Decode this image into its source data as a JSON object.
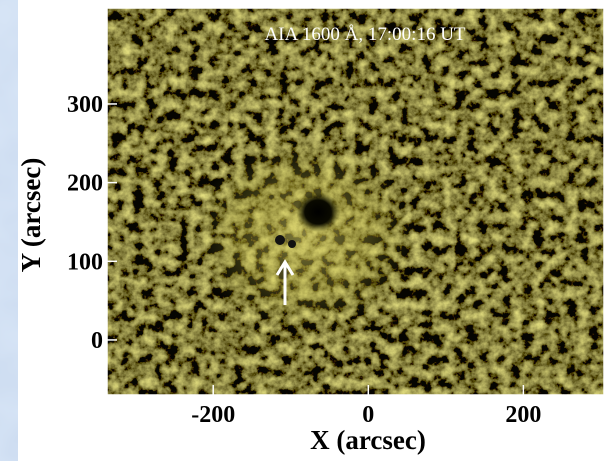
{
  "chart_data": {
    "type": "image",
    "title": "AIA 1600 Å, 17:00:16 UT",
    "xlabel": "X (arcsec)",
    "ylabel": "Y (arcsec)",
    "xlim": [
      -337,
      304
    ],
    "ylim": [
      -70,
      422
    ],
    "xticks": [
      -200,
      0,
      200
    ],
    "yticks": [
      0,
      100,
      200,
      300
    ]
  }
}
